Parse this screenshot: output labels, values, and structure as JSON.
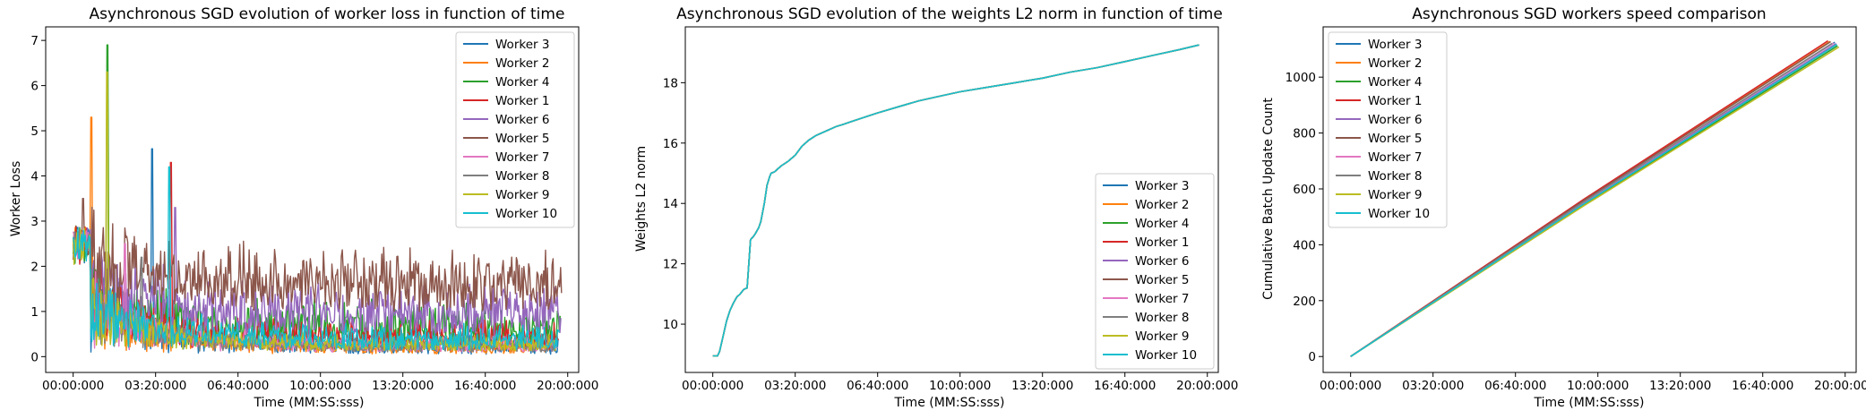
{
  "chart_data": [
    {
      "type": "line",
      "title": "Asynchronous SGD evolution of worker loss in function of time",
      "xlabel": "Time (MM:SS:sss)",
      "ylabel": "Worker Loss",
      "xlim": [
        -4000,
        73600
      ],
      "ylim": [
        -0.35,
        7.3
      ],
      "x_ticks": [
        0,
        12000,
        24000,
        36000,
        48000,
        60000,
        72000
      ],
      "x_tick_labels": [
        "00:00:000",
        "03:20:000",
        "06:40:000",
        "10:00:000",
        "13:20:000",
        "16:40:000",
        "20:00:000"
      ],
      "y_ticks": [
        0,
        1,
        2,
        3,
        4,
        5,
        6,
        7
      ],
      "y_tick_labels": [
        "0",
        "1",
        "2",
        "3",
        "4",
        "5",
        "6",
        "7"
      ],
      "legend_position": "upper right",
      "series": [
        {
          "name": "Worker 3",
          "color": "#1f77b4",
          "peak": 4.6,
          "peak_t": 11500,
          "base": 0.05,
          "amp": 0.5,
          "end": 70600
        },
        {
          "name": "Worker 2",
          "color": "#ff7f0e",
          "peak": 5.3,
          "peak_t": 2700,
          "base": 0.06,
          "amp": 0.4,
          "end": 70400
        },
        {
          "name": "Worker 4",
          "color": "#2ca02c",
          "peak": 6.9,
          "peak_t": 5000,
          "base": 0.2,
          "amp": 1.1,
          "end": 70900
        },
        {
          "name": "Worker 1",
          "color": "#d62728",
          "peak": 4.3,
          "peak_t": 14300,
          "base": 0.15,
          "amp": 0.7,
          "end": 70700
        },
        {
          "name": "Worker 6",
          "color": "#9467bd",
          "peak": 3.3,
          "peak_t": 14800,
          "base": 0.45,
          "amp": 1.3,
          "end": 71000
        },
        {
          "name": "Worker 5",
          "color": "#8c564b",
          "peak": 3.5,
          "peak_t": 1500,
          "base": 1.0,
          "amp": 1.5,
          "end": 71100
        },
        {
          "name": "Worker 7",
          "color": "#e377c2",
          "peak": 2.5,
          "peak_t": 7500,
          "base": 0.1,
          "amp": 0.4,
          "end": 70500
        },
        {
          "name": "Worker 8",
          "color": "#7f7f7f",
          "peak": 2.2,
          "peak_t": 10000,
          "base": 0.1,
          "amp": 0.3,
          "end": 70300
        },
        {
          "name": "Worker 9",
          "color": "#bcbd22",
          "peak": 6.3,
          "peak_t": 5000,
          "base": 0.12,
          "amp": 0.4,
          "end": 70200
        },
        {
          "name": "Worker 10",
          "color": "#17becf",
          "peak": 4.2,
          "peak_t": 14000,
          "base": 0.15,
          "amp": 0.6,
          "end": 70800
        }
      ]
    },
    {
      "type": "line",
      "title": "Asynchronous SGD evolution of the weights L2 norm in function of time",
      "xlabel": "Time (MM:SS:sss)",
      "ylabel": "Weights L2 norm",
      "xlim": [
        -4000,
        73600
      ],
      "ylim": [
        8.4,
        19.85
      ],
      "x_ticks": [
        0,
        12000,
        24000,
        36000,
        48000,
        60000,
        72000
      ],
      "x_tick_labels": [
        "00:00:000",
        "03:20:000",
        "06:40:000",
        "10:00:000",
        "13:20:000",
        "16:40:000",
        "20:00:000"
      ],
      "y_ticks": [
        10,
        12,
        14,
        16,
        18
      ],
      "y_tick_labels": [
        "10",
        "12",
        "14",
        "16",
        "18"
      ],
      "legend_position": "lower right",
      "norm_curve": {
        "x": [
          0,
          700,
          1000,
          1500,
          2000,
          2500,
          3000,
          3500,
          4000,
          4500,
          5000,
          5500,
          5900,
          6200,
          6700,
          7000,
          7500,
          7900,
          8300,
          8500,
          9000,
          9500,
          10000,
          11000,
          12000,
          13000,
          14000,
          15000,
          16000,
          17000,
          18000,
          19000,
          20000,
          22000,
          24000,
          27000,
          30000,
          33000,
          36000,
          40000,
          44000,
          48000,
          52000,
          56000,
          60000,
          64000,
          68000,
          70800
        ],
        "y": [
          8.95,
          8.95,
          9.1,
          9.6,
          10.1,
          10.45,
          10.7,
          10.9,
          11.0,
          11.15,
          11.2,
          12.8,
          12.9,
          13.0,
          13.2,
          13.4,
          14.0,
          14.6,
          14.9,
          15.0,
          15.05,
          15.15,
          15.25,
          15.4,
          15.6,
          15.9,
          16.1,
          16.25,
          16.35,
          16.45,
          16.55,
          16.62,
          16.7,
          16.85,
          17.0,
          17.2,
          17.4,
          17.55,
          17.7,
          17.85,
          18.0,
          18.15,
          18.35,
          18.5,
          18.7,
          18.9,
          19.1,
          19.25
        ]
      },
      "series": [
        {
          "name": "Worker 3",
          "color": "#1f77b4"
        },
        {
          "name": "Worker 2",
          "color": "#ff7f0e"
        },
        {
          "name": "Worker 4",
          "color": "#2ca02c"
        },
        {
          "name": "Worker 1",
          "color": "#d62728"
        },
        {
          "name": "Worker 6",
          "color": "#9467bd"
        },
        {
          "name": "Worker 5",
          "color": "#8c564b"
        },
        {
          "name": "Worker 7",
          "color": "#e377c2"
        },
        {
          "name": "Worker 8",
          "color": "#7f7f7f"
        },
        {
          "name": "Worker 9",
          "color": "#bcbd22"
        },
        {
          "name": "Worker 10",
          "color": "#17becf"
        }
      ]
    },
    {
      "type": "line",
      "title": "Asynchronous SGD workers speed comparison",
      "xlabel": "Time (MM:SS:sss)",
      "ylabel": "Cumulative Batch Update Count",
      "xlim": [
        -4000,
        73600
      ],
      "ylim": [
        -57,
        1180
      ],
      "x_ticks": [
        0,
        12000,
        24000,
        36000,
        48000,
        60000,
        72000
      ],
      "x_tick_labels": [
        "00:00:000",
        "03:20:000",
        "06:40:000",
        "10:00:000",
        "13:20:000",
        "16:40:000",
        "20:00:000"
      ],
      "y_ticks": [
        0,
        200,
        400,
        600,
        800,
        1000
      ],
      "y_tick_labels": [
        "0",
        "200",
        "400",
        "600",
        "800",
        "1000"
      ],
      "legend_position": "upper left",
      "series": [
        {
          "name": "Worker 3",
          "color": "#1f77b4",
          "end_x": 70500,
          "end_y": 1125
        },
        {
          "name": "Worker 2",
          "color": "#ff7f0e",
          "end_x": 69800,
          "end_y": 1128
        },
        {
          "name": "Worker 4",
          "color": "#2ca02c",
          "end_x": 70900,
          "end_y": 1112
        },
        {
          "name": "Worker 1",
          "color": "#d62728",
          "end_x": 69500,
          "end_y": 1130
        },
        {
          "name": "Worker 6",
          "color": "#9467bd",
          "end_x": 70700,
          "end_y": 1120
        },
        {
          "name": "Worker 5",
          "color": "#8c564b",
          "end_x": 69900,
          "end_y": 1127
        },
        {
          "name": "Worker 7",
          "color": "#e377c2",
          "end_x": 70300,
          "end_y": 1122
        },
        {
          "name": "Worker 8",
          "color": "#7f7f7f",
          "end_x": 70100,
          "end_y": 1121
        },
        {
          "name": "Worker 9",
          "color": "#bcbd22",
          "end_x": 71100,
          "end_y": 1108
        },
        {
          "name": "Worker 10",
          "color": "#17becf",
          "end_x": 70800,
          "end_y": 1117
        }
      ]
    }
  ]
}
